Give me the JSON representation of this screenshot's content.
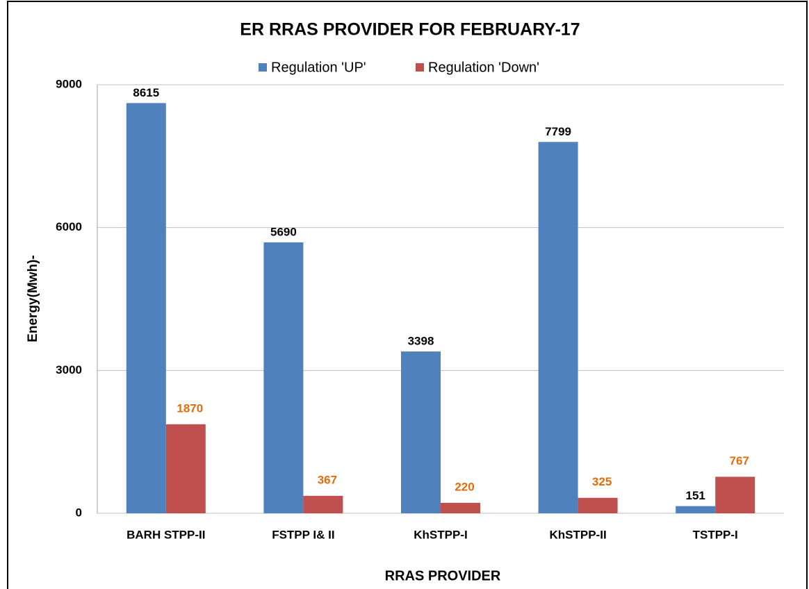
{
  "chart_data": {
    "type": "bar",
    "title": "ER RRAS PROVIDER FOR FEBRUARY-17",
    "x_label": "RRAS PROVIDER",
    "y_label": "Energy(Mwh)-",
    "categories": [
      "BARH STPP-II",
      "FSTPP I& II",
      "KhSTPP-I",
      "KhSTPP-II",
      "TSTPP-I"
    ],
    "series": [
      {
        "name": "Regulation 'UP'",
        "color": "#4f81bd",
        "label_color": "#000000",
        "values": [
          8615,
          5690,
          3398,
          7799,
          151
        ]
      },
      {
        "name": "Regulation 'Down'",
        "color": "#c0504d",
        "label_color": "#e46c0a",
        "values": [
          1870,
          367,
          220,
          325,
          767
        ]
      }
    ],
    "ylim": [
      0,
      9000
    ],
    "yticks": [
      0,
      3000,
      6000,
      9000
    ],
    "grid": true,
    "legend": "top"
  }
}
